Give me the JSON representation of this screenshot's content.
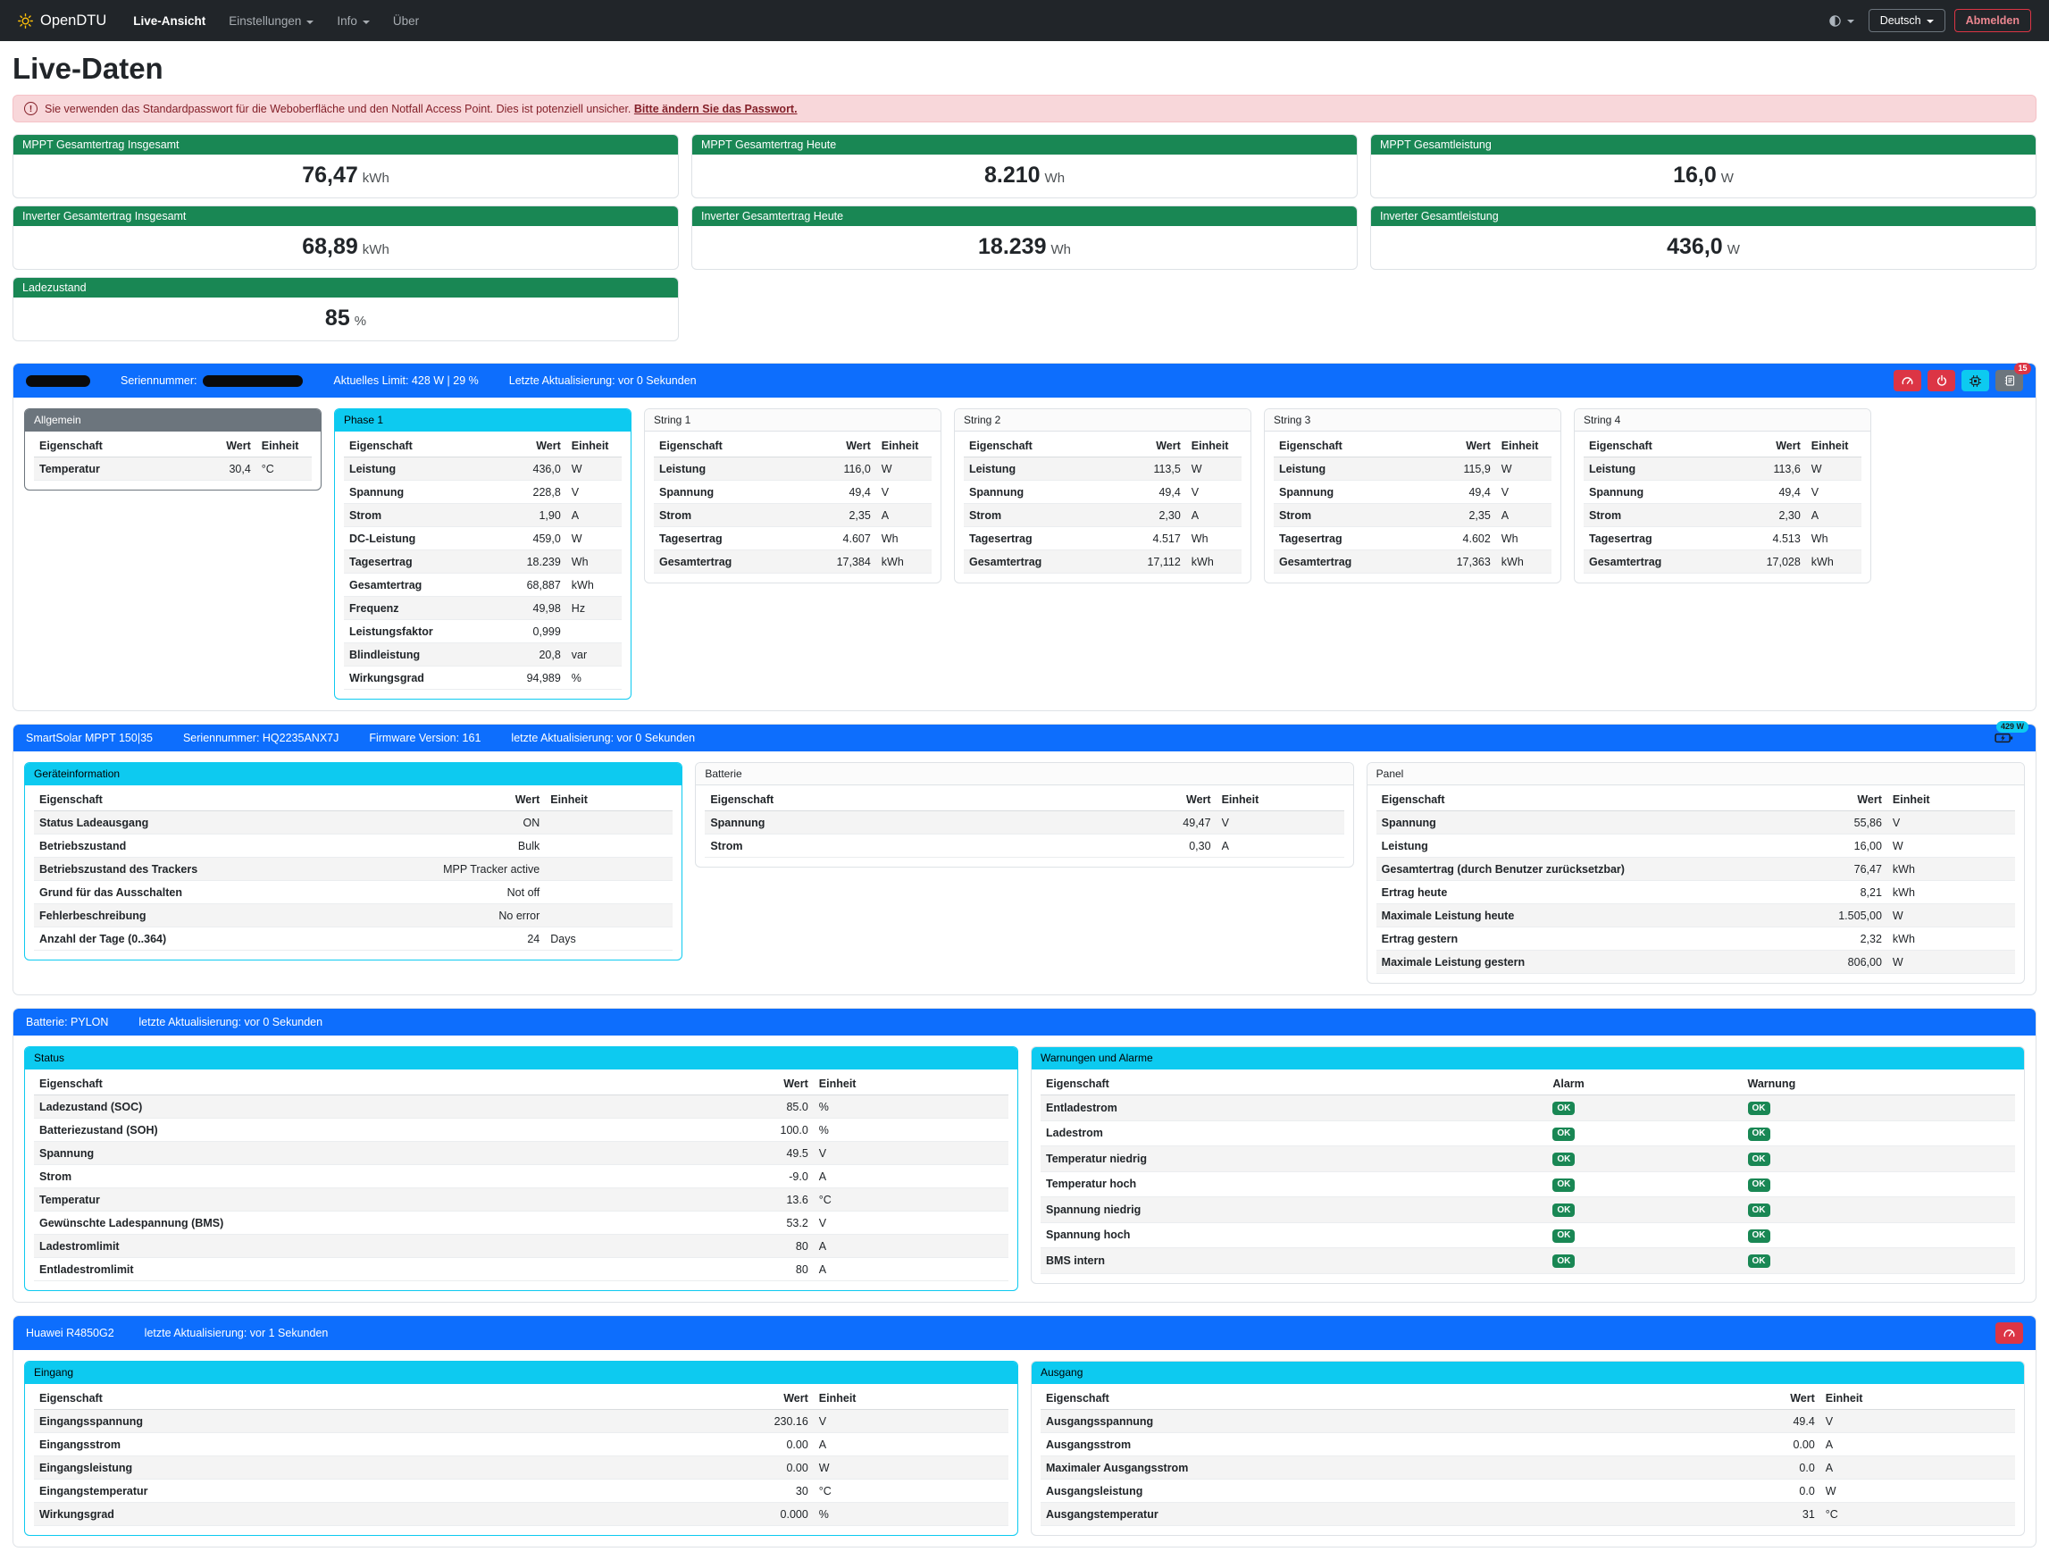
{
  "colors": {
    "primary": "#0d6efd",
    "success": "#198754",
    "info": "#0dcaf0",
    "danger": "#dc3545",
    "secondary": "#6c757d",
    "navbar": "#212529",
    "brand_sun": "#ffc107"
  },
  "icons": [
    "sun-icon",
    "circle-half-theme-icon",
    "chevron-down-caret",
    "exclamation-circle-icon",
    "limit-gauge-icon",
    "power-icon",
    "chip-info-icon",
    "event-log-journal-icon",
    "battery-charging-icon"
  ],
  "navbar": {
    "brand": "OpenDTU",
    "items": [
      {
        "label": "Live-Ansicht",
        "active": true,
        "caret": false
      },
      {
        "label": "Einstellungen",
        "active": false,
        "caret": true
      },
      {
        "label": "Info",
        "active": false,
        "caret": true
      },
      {
        "label": "Über",
        "active": false,
        "caret": false
      }
    ],
    "language": "Deutsch",
    "logout_label": "Abmelden"
  },
  "page_title": "Live-Daten",
  "alert": {
    "text": "Sie verwenden das Standardpasswort für die Weboberfläche und den Notfall Access Point. Dies ist potenziell unsicher.",
    "link_text": "Bitte ändern Sie das Passwort."
  },
  "summary_cards": [
    {
      "title": "MPPT Gesamtertrag Insgesamt",
      "value": "76,47",
      "unit": "kWh"
    },
    {
      "title": "MPPT Gesamtertrag Heute",
      "value": "8.210",
      "unit": "Wh"
    },
    {
      "title": "MPPT Gesamtleistung",
      "value": "16,0",
      "unit": "W"
    },
    {
      "title": "Inverter Gesamtertrag Insgesamt",
      "value": "68,89",
      "unit": "kWh"
    },
    {
      "title": "Inverter Gesamtertrag Heute",
      "value": "18.239",
      "unit": "Wh"
    },
    {
      "title": "Inverter Gesamtleistung",
      "value": "436,0",
      "unit": "W"
    },
    {
      "title": "Ladezustand",
      "value": "85",
      "unit": "%"
    }
  ],
  "inverter": {
    "serial_label": "Seriennummer:",
    "limit_text": "Aktuelles Limit: 428 W | 29 %",
    "updated_text": "Letzte Aktualisierung: vor 0 Sekunden",
    "log_badge": "15",
    "tables": [
      {
        "title": "Allgemein",
        "header": "secondary",
        "border": "secondary",
        "rows": [
          [
            "Temperatur",
            "30,4",
            "°C"
          ]
        ]
      },
      {
        "title": "Phase 1",
        "header": "info",
        "border": "info",
        "rows": [
          [
            "Leistung",
            "436,0",
            "W"
          ],
          [
            "Spannung",
            "228,8",
            "V"
          ],
          [
            "Strom",
            "1,90",
            "A"
          ],
          [
            "DC-Leistung",
            "459,0",
            "W"
          ],
          [
            "Tagesertrag",
            "18.239",
            "Wh"
          ],
          [
            "Gesamtertrag",
            "68,887",
            "kWh"
          ],
          [
            "Frequenz",
            "49,98",
            "Hz"
          ],
          [
            "Leistungsfaktor",
            "0,999",
            ""
          ],
          [
            "Blindleistung",
            "20,8",
            "var"
          ],
          [
            "Wirkungsgrad",
            "94,989",
            "%"
          ]
        ]
      },
      {
        "title": "String 1",
        "header": "plain",
        "border": "plain",
        "rows": [
          [
            "Leistung",
            "116,0",
            "W"
          ],
          [
            "Spannung",
            "49,4",
            "V"
          ],
          [
            "Strom",
            "2,35",
            "A"
          ],
          [
            "Tagesertrag",
            "4.607",
            "Wh"
          ],
          [
            "Gesamtertrag",
            "17,384",
            "kWh"
          ]
        ]
      },
      {
        "title": "String 2",
        "header": "plain",
        "border": "plain",
        "rows": [
          [
            "Leistung",
            "113,5",
            "W"
          ],
          [
            "Spannung",
            "49,4",
            "V"
          ],
          [
            "Strom",
            "2,30",
            "A"
          ],
          [
            "Tagesertrag",
            "4.517",
            "Wh"
          ],
          [
            "Gesamtertrag",
            "17,112",
            "kWh"
          ]
        ]
      },
      {
        "title": "String 3",
        "header": "plain",
        "border": "plain",
        "rows": [
          [
            "Leistung",
            "115,9",
            "W"
          ],
          [
            "Spannung",
            "49,4",
            "V"
          ],
          [
            "Strom",
            "2,35",
            "A"
          ],
          [
            "Tagesertrag",
            "4.602",
            "Wh"
          ],
          [
            "Gesamtertrag",
            "17,363",
            "kWh"
          ]
        ]
      },
      {
        "title": "String 4",
        "header": "plain",
        "border": "plain",
        "rows": [
          [
            "Leistung",
            "113,6",
            "W"
          ],
          [
            "Spannung",
            "49,4",
            "V"
          ],
          [
            "Strom",
            "2,30",
            "A"
          ],
          [
            "Tagesertrag",
            "4.513",
            "Wh"
          ],
          [
            "Gesamtertrag",
            "17,028",
            "kWh"
          ]
        ]
      }
    ]
  },
  "victron": {
    "model": "SmartSolar MPPT 150|35",
    "serial_text": "Seriennummer: HQ2235ANX7J",
    "firmware_text": "Firmware Version: 161",
    "updated_text": "letzte Aktualisierung: vor 0 Sekunden",
    "charge_badge": "429 W",
    "tables": [
      {
        "title": "Geräteinformation",
        "header": "info",
        "border": "info",
        "rows": [
          [
            "Status Ladeausgang",
            "ON",
            ""
          ],
          [
            "Betriebszustand",
            "Bulk",
            ""
          ],
          [
            "Betriebszustand des Trackers",
            "MPP Tracker active",
            ""
          ],
          [
            "Grund für das Ausschalten",
            "Not off",
            ""
          ],
          [
            "Fehlerbeschreibung",
            "No error",
            ""
          ],
          [
            "Anzahl der Tage (0..364)",
            "24",
            "Days"
          ]
        ]
      },
      {
        "title": "Batterie",
        "header": "plain",
        "border": "plain",
        "rows": [
          [
            "Spannung",
            "49,47",
            "V"
          ],
          [
            "Strom",
            "0,30",
            "A"
          ]
        ]
      },
      {
        "title": "Panel",
        "header": "plain",
        "border": "plain",
        "rows": [
          [
            "Spannung",
            "55,86",
            "V"
          ],
          [
            "Leistung",
            "16,00",
            "W"
          ],
          [
            "Gesamtertrag (durch Benutzer zurücksetzbar)",
            "76,47",
            "kWh"
          ],
          [
            "Ertrag heute",
            "8,21",
            "kWh"
          ],
          [
            "Maximale Leistung heute",
            "1.505,00",
            "W"
          ],
          [
            "Ertrag gestern",
            "2,32",
            "kWh"
          ],
          [
            "Maximale Leistung gestern",
            "806,00",
            "W"
          ]
        ]
      }
    ]
  },
  "battery": {
    "title": "Batterie: PYLON",
    "updated_text": "letzte Aktualisierung: vor 0 Sekunden",
    "tables": [
      {
        "title": "Status",
        "header": "info",
        "border": "info",
        "rows": [
          [
            "Ladezustand (SOC)",
            "85.0",
            "%"
          ],
          [
            "Batteriezustand (SOH)",
            "100.0",
            "%"
          ],
          [
            "Spannung",
            "49.5",
            "V"
          ],
          [
            "Strom",
            "-9.0",
            "A"
          ],
          [
            "Temperatur",
            "13.6",
            "°C"
          ],
          [
            "Gewünschte Ladespannung (BMS)",
            "53.2",
            "V"
          ],
          [
            "Ladestromlimit",
            "80",
            "A"
          ],
          [
            "Entladestromlimit",
            "80",
            "A"
          ]
        ]
      },
      {
        "title": "Warnungen und Alarme",
        "header": "info",
        "border": "plain",
        "badges": true,
        "columns": [
          "Eigenschaft",
          "Alarm",
          "Warnung"
        ],
        "rows": [
          [
            "Entladestrom",
            "OK",
            "OK"
          ],
          [
            "Ladestrom",
            "OK",
            "OK"
          ],
          [
            "Temperatur niedrig",
            "OK",
            "OK"
          ],
          [
            "Temperatur hoch",
            "OK",
            "OK"
          ],
          [
            "Spannung niedrig",
            "OK",
            "OK"
          ],
          [
            "Spannung hoch",
            "OK",
            "OK"
          ],
          [
            "BMS intern",
            "OK",
            "OK"
          ]
        ]
      }
    ]
  },
  "huawei": {
    "title": "Huawei R4850G2",
    "updated_text": "letzte Aktualisierung: vor 1 Sekunden",
    "tables": [
      {
        "title": "Eingang",
        "header": "info",
        "border": "info",
        "rows": [
          [
            "Eingangsspannung",
            "230.16",
            "V"
          ],
          [
            "Eingangsstrom",
            "0.00",
            "A"
          ],
          [
            "Eingangsleistung",
            "0.00",
            "W"
          ],
          [
            "Eingangstemperatur",
            "30",
            "°C"
          ],
          [
            "Wirkungsgrad",
            "0.000",
            "%"
          ]
        ]
      },
      {
        "title": "Ausgang",
        "header": "info",
        "border": "plain",
        "rows": [
          [
            "Ausgangsspannung",
            "49.4",
            "V"
          ],
          [
            "Ausgangsstrom",
            "0.00",
            "A"
          ],
          [
            "Maximaler Ausgangsstrom",
            "0.0",
            "A"
          ],
          [
            "Ausgangsleistung",
            "0.0",
            "W"
          ],
          [
            "Ausgangstemperatur",
            "31",
            "°C"
          ]
        ]
      }
    ]
  },
  "table_defaults": {
    "columns": [
      "Eigenschaft",
      "Wert",
      "Einheit"
    ]
  }
}
